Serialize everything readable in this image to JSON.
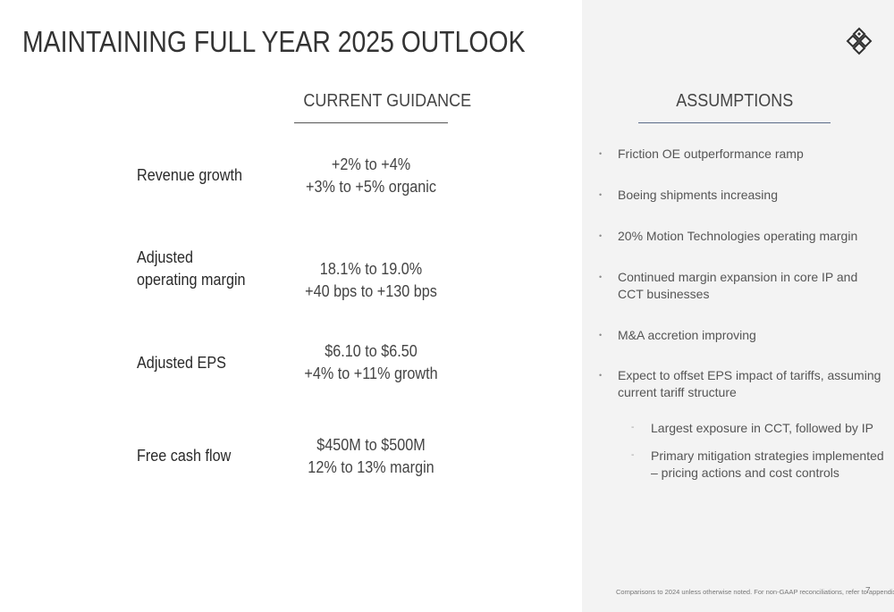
{
  "slide": {
    "title": "MAINTAINING FULL YEAR 2025 OUTLOOK",
    "page_number": "7",
    "footnote": "Comparisons to 2024 unless otherwise noted. For non-GAAP reconciliations, refer to appendix",
    "logo_icon": "diamond-logo-icon"
  },
  "headers": {
    "guidance": "CURRENT GUIDANCE",
    "assumptions": "ASSUMPTIONS"
  },
  "metrics": [
    {
      "label_lines": [
        "Revenue growth"
      ],
      "guidance_lines": [
        "+2% to +4%",
        "+3% to +5% organic"
      ]
    },
    {
      "label_lines": [
        "Adjusted",
        "operating margin"
      ],
      "guidance_lines": [
        "18.1% to 19.0%",
        "+40 bps to +130 bps"
      ]
    },
    {
      "label_lines": [
        "Adjusted EPS"
      ],
      "guidance_lines": [
        "$6.10 to $6.50",
        "+4% to +11% growth"
      ]
    },
    {
      "label_lines": [
        "Free cash flow"
      ],
      "guidance_lines": [
        "$450M to $500M",
        "12% to 13% margin"
      ]
    }
  ],
  "assumptions": [
    {
      "text": "Friction OE outperformance ramp"
    },
    {
      "text": "Boeing shipments increasing"
    },
    {
      "text": "20% Motion Technologies operating margin"
    },
    {
      "text": "Continued margin expansion in core IP and CCT businesses"
    },
    {
      "text": "M&A accretion improving"
    },
    {
      "text": "Expect to offset EPS impact of tariffs, assuming current tariff structure"
    }
  ],
  "sub_assumptions": [
    {
      "text": "Largest exposure in CCT, followed by IP"
    },
    {
      "text": "Primary mitigation strategies implemented – pricing actions and cost controls"
    }
  ],
  "colors": {
    "title": "#333333",
    "right_panel": "#f3f3f3",
    "assumptions_underline": "#5a6a88",
    "logo_dark": "#2f2f2f"
  }
}
